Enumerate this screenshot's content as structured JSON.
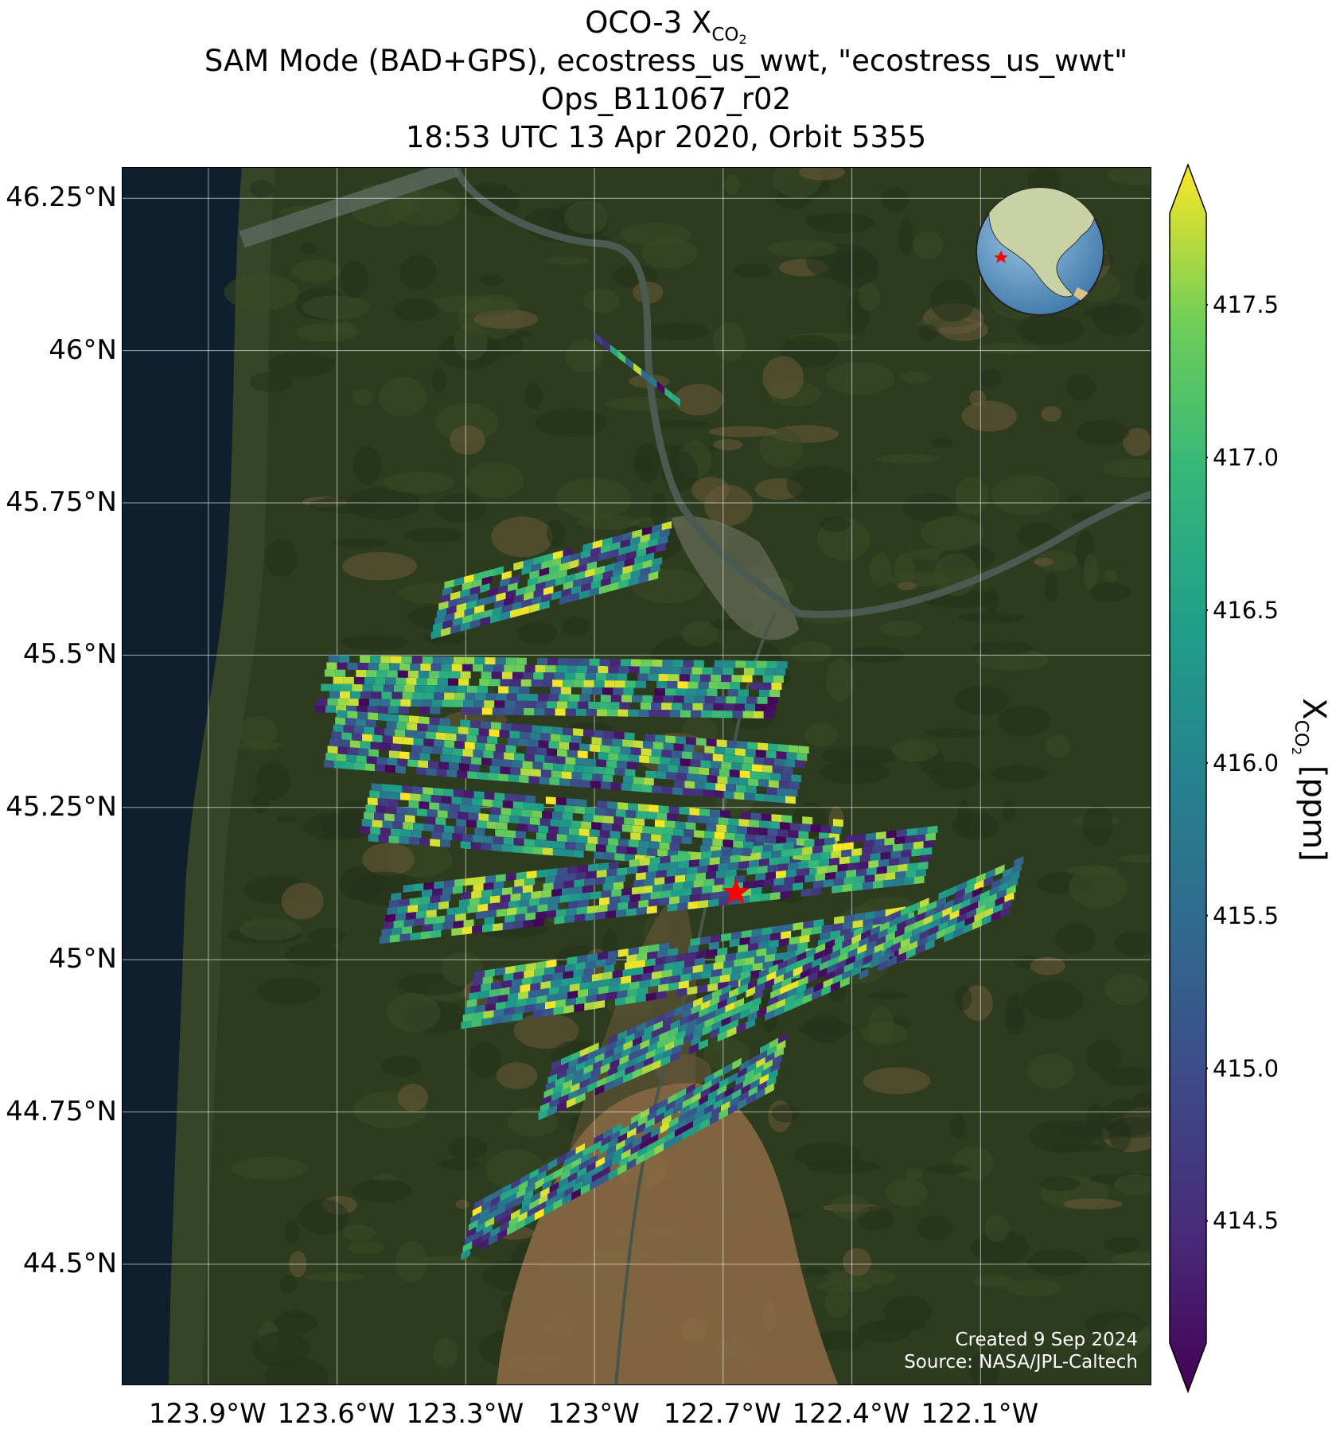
{
  "title": {
    "line1_prefix": "OCO-3 X",
    "line1_sub": "CO",
    "line1_sub2": "2",
    "line2": "SAM Mode (BAD+GPS), ecostress_us_wwt, \"ecostress_us_wwt\"",
    "line3": "Ops_B11067_r02",
    "line4": "18:53 UTC 13 Apr 2020, Orbit 5355"
  },
  "map": {
    "lat_labels": [
      "46.25°N",
      "46°N",
      "45.75°N",
      "45.5°N",
      "45.25°N",
      "45°N",
      "44.75°N",
      "44.5°N"
    ],
    "lon_labels": [
      "123.9°W",
      "123.6°W",
      "123.3°W",
      "123°W",
      "122.7°W",
      "122.4°W",
      "122.1°W"
    ],
    "target": {
      "name": "red-star",
      "lat": 45.11,
      "lon": -122.67
    },
    "credit": {
      "line1": "Created 9 Sep 2024",
      "line2": "Source: NASA/JPL-Caltech"
    },
    "inset": "globe locator (North America, red star)",
    "colors": {
      "ocean": "#0f1f2e",
      "forest": "#2c3b1c",
      "farmland": "#8e6c45",
      "grid": "#ffffff",
      "star": "#ff0000"
    }
  },
  "colorbar": {
    "title_prefix": "X",
    "title_sub": "CO",
    "title_sub2": "2",
    "title_suffix": " [ppm]",
    "ticks": [
      "417.5",
      "417.0",
      "416.5",
      "416.0",
      "415.5",
      "415.0",
      "414.5"
    ],
    "colormap": "viridis",
    "range": [
      414.1,
      417.8
    ]
  },
  "chart_data": {
    "type": "heatmap",
    "variable": "XCO2",
    "units": "ppm",
    "vmin": 414.1,
    "vmax": 417.8,
    "lat_range": [
      44.3,
      46.3
    ],
    "lon_range": [
      -124.1,
      -121.7
    ],
    "swaths": [
      {
        "start": [
          -123.35,
          45.62
        ],
        "end": [
          -122.82,
          45.72
        ]
      },
      {
        "start": [
          -123.62,
          45.5
        ],
        "end": [
          -122.55,
          45.49
        ]
      },
      {
        "start": [
          -123.6,
          45.41
        ],
        "end": [
          -122.5,
          45.35
        ]
      },
      {
        "start": [
          -123.52,
          45.29
        ],
        "end": [
          -122.42,
          45.23
        ]
      },
      {
        "start": [
          -123.47,
          45.12
        ],
        "end": [
          -122.2,
          45.22
        ]
      },
      {
        "start": [
          -123.28,
          44.98
        ],
        "end": [
          -122.25,
          45.09
        ]
      },
      {
        "start": [
          -123.1,
          44.83
        ],
        "end": [
          -122.0,
          45.17
        ]
      },
      {
        "start": [
          -123.28,
          44.6
        ],
        "end": [
          -122.55,
          44.88
        ]
      },
      {
        "start": [
          -123.0,
          46.03
        ],
        "end": [
          -122.8,
          45.92
        ]
      }
    ]
  }
}
